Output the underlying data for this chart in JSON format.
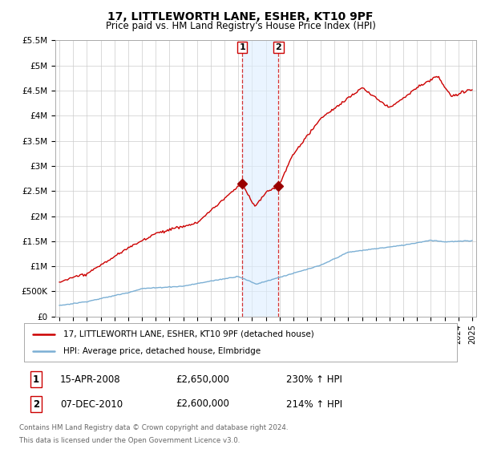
{
  "title": "17, LITTLEWORTH LANE, ESHER, KT10 9PF",
  "subtitle": "Price paid vs. HM Land Registry's House Price Index (HPI)",
  "legend_line1": "17, LITTLEWORTH LANE, ESHER, KT10 9PF (detached house)",
  "legend_line2": "HPI: Average price, detached house, Elmbridge",
  "transaction1_label": "1",
  "transaction1_date": "15-APR-2008",
  "transaction1_price": 2650000,
  "transaction1_hpi": "230% ↑ HPI",
  "transaction2_label": "2",
  "transaction2_date": "07-DEC-2010",
  "transaction2_price": 2600000,
  "transaction2_hpi": "214% ↑ HPI",
  "footer1": "Contains HM Land Registry data © Crown copyright and database right 2024.",
  "footer2": "This data is licensed under the Open Government Licence v3.0.",
  "hpi_line_color": "#7bafd4",
  "price_line_color": "#cc0000",
  "highlight_box_color": "#ddeeff",
  "transaction_marker_color": "#990000",
  "ylim_min": 0,
  "ylim_max": 5500000,
  "yticks": [
    0,
    500000,
    1000000,
    1500000,
    2000000,
    2500000,
    3000000,
    3500000,
    4000000,
    4500000,
    5000000,
    5500000
  ],
  "ytick_labels": [
    "£0",
    "£500K",
    "£1M",
    "£1.5M",
    "£2M",
    "£2.5M",
    "£3M",
    "£3.5M",
    "£4M",
    "£4.5M",
    "£5M",
    "£5.5M"
  ],
  "xlim_min": 1994.7,
  "xlim_max": 2025.3,
  "transaction1_x": 2008.29,
  "transaction2_x": 2010.92
}
